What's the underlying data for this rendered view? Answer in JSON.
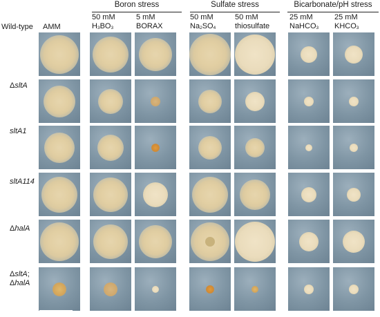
{
  "groups": [
    {
      "title": "Boron stress"
    },
    {
      "title": "Sulfate stress"
    },
    {
      "title": "Bicarbonate/pH stress"
    }
  ],
  "columns": [
    {
      "line1": "AMM",
      "line2": "",
      "sub": ""
    },
    {
      "line1": "50 mM",
      "line2": "H",
      "sub": "3",
      "line2b": "BO",
      "sub2": "3"
    },
    {
      "line1": "5 mM",
      "line2": "BORAX",
      "sub": ""
    },
    {
      "line1": "50 mM",
      "line2": "Na",
      "sub": "2",
      "line2b": "SO",
      "sub2": "4"
    },
    {
      "line1": "50 mM",
      "line2": "thiosulfate",
      "sub": ""
    },
    {
      "line1": "25 mM",
      "line2": "NaHCO",
      "sub": "3"
    },
    {
      "line1": "25 mM",
      "line2": "KHCO",
      "sub": "3"
    }
  ],
  "rows": [
    {
      "prefix": "",
      "name": "Wild-type",
      "italic": false
    },
    {
      "prefix": "Δ",
      "name": "sltA",
      "italic": true
    },
    {
      "prefix": "",
      "name": "sltA1",
      "italic": true
    },
    {
      "prefix": "",
      "name": "sltA114",
      "italic": true
    },
    {
      "prefix": "Δ",
      "name": "halA",
      "italic": true
    },
    {
      "prefix": "Δ",
      "name": "sltA",
      "italic": true,
      "line2prefix": "Δ",
      "line2name": "halA"
    }
  ]
}
